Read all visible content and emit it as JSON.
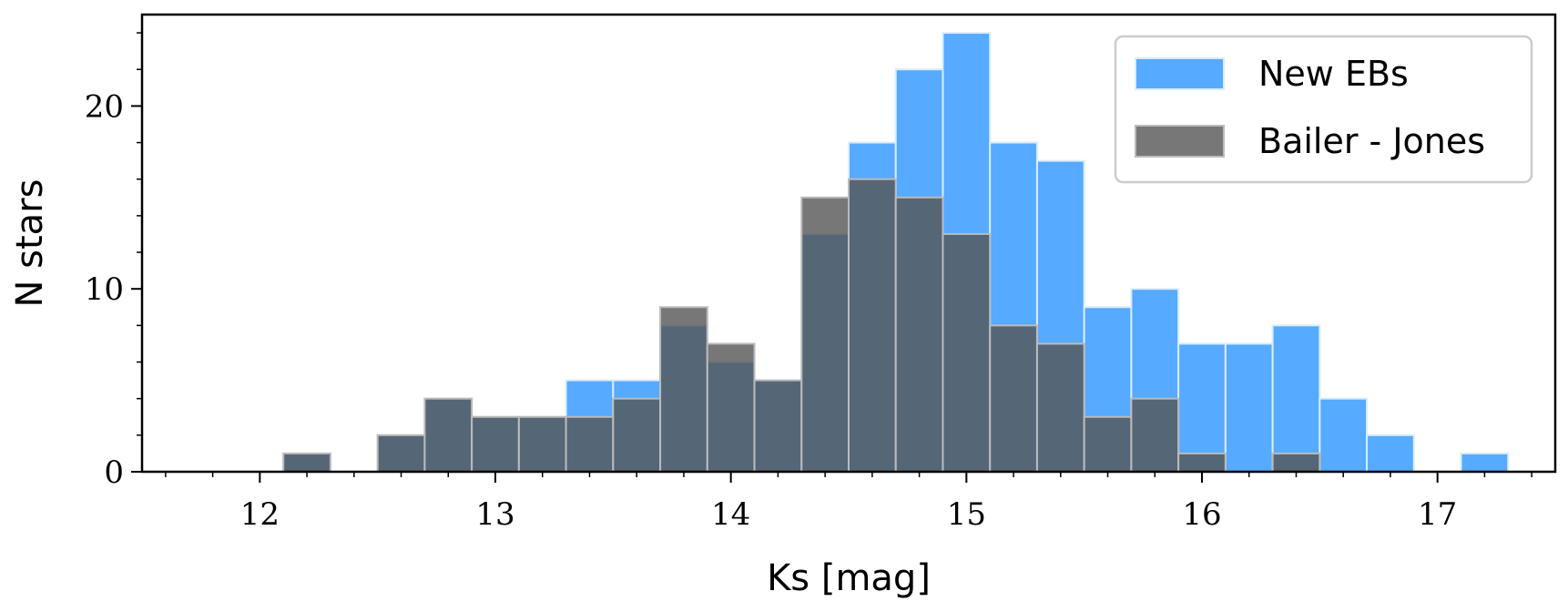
{
  "chart_data": {
    "type": "bar",
    "xlabel": "Ks [mag]",
    "ylabel": "N stars",
    "xlim": [
      11.5,
      17.5
    ],
    "ylim": [
      0,
      25
    ],
    "x_ticks": [
      12,
      13,
      14,
      15,
      16,
      17
    ],
    "y_ticks": [
      0,
      10,
      20
    ],
    "grid": false,
    "legend_position": "top-right",
    "bin_edges": [
      12.1,
      12.3,
      12.5,
      12.7,
      12.9,
      13.1,
      13.3,
      13.5,
      13.7,
      13.9,
      14.1,
      14.3,
      14.5,
      14.7,
      14.9,
      15.1,
      15.3,
      15.5,
      15.7,
      15.9,
      16.1,
      16.3,
      16.5,
      16.7,
      16.9,
      17.1,
      17.3
    ],
    "series": [
      {
        "name": "New EBs",
        "color": "#56aaff",
        "values": [
          1,
          0,
          2,
          4,
          3,
          3,
          5,
          5,
          8,
          6,
          5,
          13,
          18,
          22,
          24,
          18,
          17,
          9,
          10,
          7,
          7,
          8,
          4,
          2,
          0,
          1
        ]
      },
      {
        "name": "Bailer - Jones",
        "color": "#555555",
        "values": [
          1,
          0,
          2,
          4,
          3,
          3,
          3,
          4,
          9,
          7,
          5,
          15,
          16,
          15,
          13,
          8,
          7,
          3,
          4,
          1,
          0,
          1,
          0,
          0,
          0,
          0
        ]
      }
    ]
  }
}
